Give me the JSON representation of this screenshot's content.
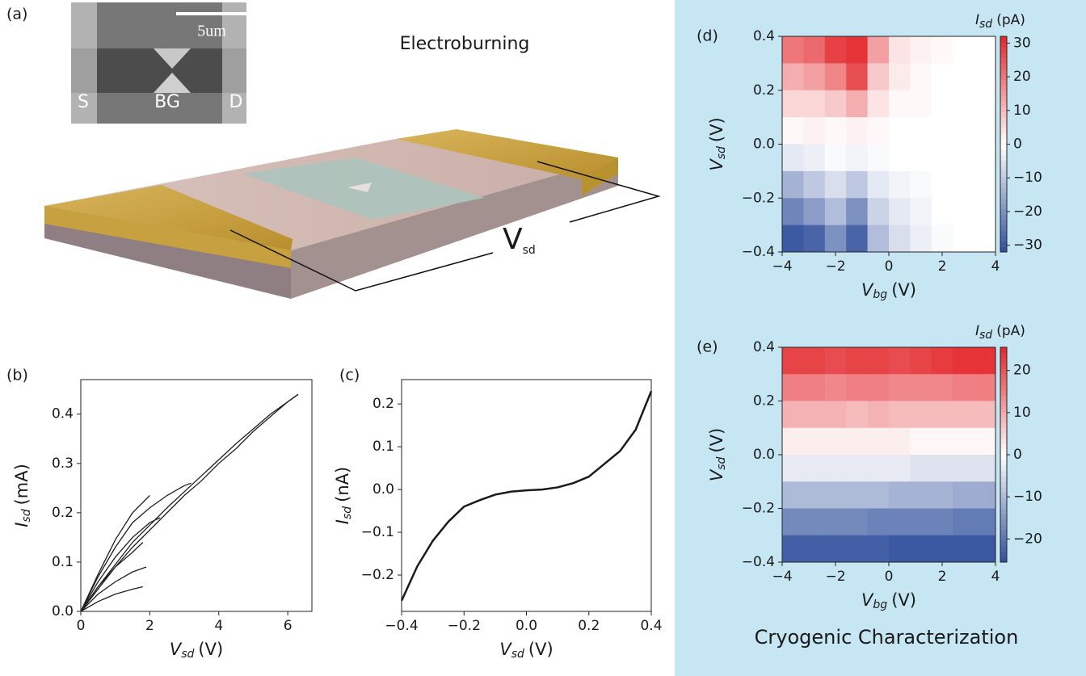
{
  "figure": {
    "panel_a": {
      "label": "(a)",
      "title": "Electroburning",
      "scale_bar": "5um",
      "electrodes": [
        "S",
        "BG",
        "D"
      ],
      "bias_symbol": "V",
      "bias_subscript": "sd"
    },
    "caption": "Cryogenic Characterization"
  },
  "chart_data": [
    {
      "type": "line",
      "label": "(b)",
      "xlabel": {
        "symbol": "V",
        "sub": "sd",
        "unit": "(V)"
      },
      "ylabel": {
        "symbol": "I",
        "sub": "sd",
        "unit": "(mA)"
      },
      "xlim": [
        0,
        6.7
      ],
      "ylim": [
        0,
        0.47
      ],
      "xticks": [
        0,
        2,
        4,
        6
      ],
      "yticks": [
        {
          "value": 0,
          "label": "0.0"
        },
        0.1,
        0.2,
        0.3,
        0.4
      ],
      "series": [
        {
          "color": "#231f20",
          "x": [
            0,
            0.5,
            1,
            1.5,
            2,
            2.5,
            3,
            3.5,
            4,
            4.5,
            5,
            5.5,
            6,
            6.3
          ],
          "values": [
            0,
            0.045,
            0.09,
            0.13,
            0.165,
            0.2,
            0.235,
            0.265,
            0.3,
            0.33,
            0.365,
            0.395,
            0.425,
            0.44
          ]
        },
        {
          "color": "#231f20",
          "x": [
            6.3,
            5.5,
            4.5,
            3.5,
            2.5,
            1.5,
            0.5,
            0
          ],
          "values": [
            0.44,
            0.4,
            0.34,
            0.275,
            0.21,
            0.14,
            0.05,
            0
          ]
        },
        {
          "color": "#231f20",
          "x": [
            0,
            0.5,
            1,
            1.5,
            2,
            2.5,
            3,
            3.2
          ],
          "values": [
            0,
            0.07,
            0.13,
            0.18,
            0.21,
            0.235,
            0.255,
            0.26
          ]
        },
        {
          "color": "#231f20",
          "x": [
            0,
            0.5,
            1,
            1.5,
            2,
            2.3
          ],
          "values": [
            0,
            0.06,
            0.11,
            0.15,
            0.18,
            0.19
          ]
        },
        {
          "color": "#231f20",
          "x": [
            0,
            0.5,
            1,
            1.5,
            2
          ],
          "values": [
            0,
            0.075,
            0.145,
            0.2,
            0.235
          ]
        },
        {
          "color": "#231f20",
          "x": [
            0,
            0.5,
            1,
            1.5,
            1.8
          ],
          "values": [
            0,
            0.05,
            0.09,
            0.12,
            0.14
          ]
        },
        {
          "color": "#231f20",
          "x": [
            0,
            0.5,
            1,
            1.5,
            1.9
          ],
          "values": [
            0,
            0.035,
            0.06,
            0.08,
            0.09
          ]
        },
        {
          "color": "#231f20",
          "x": [
            0,
            0.5,
            1,
            1.5,
            1.8
          ],
          "values": [
            0,
            0.02,
            0.035,
            0.045,
            0.05
          ]
        }
      ]
    },
    {
      "type": "line",
      "label": "(c)",
      "xlabel": {
        "symbol": "V",
        "sub": "sd",
        "unit": "(V)"
      },
      "ylabel": {
        "symbol": "I",
        "sub": "sd",
        "unit": "(nA)"
      },
      "xlim": [
        -0.4,
        0.4
      ],
      "ylim": [
        -0.285,
        0.257
      ],
      "xticks": [
        {
          "value": -0.4,
          "label": "−0.4"
        },
        {
          "value": -0.2,
          "label": "−0.2"
        },
        {
          "value": 0,
          "label": "0.0"
        },
        0.2,
        0.4
      ],
      "yticks": [
        {
          "value": -0.2,
          "label": "−0.2"
        },
        {
          "value": -0.1,
          "label": "−0.1"
        },
        {
          "value": 0,
          "label": "0.0"
        },
        0.1,
        0.2
      ],
      "series": [
        {
          "color": "#1a1a1a",
          "x": [
            -0.4,
            -0.35,
            -0.3,
            -0.25,
            -0.2,
            -0.15,
            -0.1,
            -0.05,
            0,
            0.05,
            0.1,
            0.15,
            0.2,
            0.25,
            0.3,
            0.35,
            0.4
          ],
          "values": [
            -0.26,
            -0.18,
            -0.12,
            -0.075,
            -0.04,
            -0.025,
            -0.012,
            -0.005,
            -0.002,
            0,
            0.005,
            0.015,
            0.03,
            0.06,
            0.09,
            0.14,
            0.23
          ]
        }
      ]
    },
    {
      "type": "heatmap",
      "label": "(d)",
      "xlabel": {
        "symbol": "V",
        "sub": "bg",
        "unit": "(V)"
      },
      "ylabel": {
        "symbol": "V",
        "sub": "sd",
        "unit": "(V)"
      },
      "zlabel": {
        "symbol": "I",
        "sub": "sd",
        "unit": "(pA)"
      },
      "xlim": [
        -4,
        4
      ],
      "ylim": [
        -0.4,
        0.4
      ],
      "zlim": [
        -32,
        32
      ],
      "xticks": [
        {
          "value": -4,
          "label": "−4"
        },
        {
          "value": -2,
          "label": "−2"
        },
        0,
        2,
        4
      ],
      "yticks": [
        {
          "value": -0.4,
          "label": "−0.4"
        },
        {
          "value": -0.2,
          "label": "−0.2"
        },
        {
          "value": 0,
          "label": "0.0"
        },
        0.2,
        0.4
      ],
      "zticks": [
        {
          "value": -30,
          "label": "−30"
        },
        {
          "value": -20,
          "label": "−20"
        },
        {
          "value": -10,
          "label": "−10"
        },
        0,
        10,
        20,
        30
      ],
      "cmap": [
        "#2f4f9c",
        "#ffffff",
        "#e3262a"
      ],
      "xbins": [
        -4,
        -3.2,
        -2.4,
        -1.6,
        -0.8,
        0,
        0.8,
        1.6,
        2.4,
        3.2,
        4
      ],
      "ybins": [
        0.4,
        0.3,
        0.2,
        0.1,
        0,
        -0.1,
        -0.2,
        -0.3,
        -0.4
      ],
      "z": [
        [
          20,
          22,
          28,
          30,
          14,
          4,
          2,
          1,
          0,
          0
        ],
        [
          12,
          14,
          18,
          26,
          8,
          3,
          1,
          0,
          0,
          0
        ],
        [
          6,
          6,
          8,
          12,
          4,
          1,
          1,
          0,
          0,
          0
        ],
        [
          1,
          2,
          1,
          2,
          1,
          0,
          0,
          0,
          0,
          0
        ],
        [
          -4,
          -3,
          -1,
          -2,
          -1,
          0,
          0,
          0,
          0,
          0
        ],
        [
          -14,
          -10,
          -6,
          -10,
          -4,
          -2,
          -1,
          0,
          0,
          0
        ],
        [
          -22,
          -18,
          -12,
          -20,
          -8,
          -4,
          -2,
          0,
          0,
          0
        ],
        [
          -30,
          -28,
          -20,
          -28,
          -12,
          -6,
          -3,
          -1,
          0,
          0
        ]
      ]
    },
    {
      "type": "heatmap",
      "label": "(e)",
      "xlabel": {
        "symbol": "V",
        "sub": "bg",
        "unit": "(V)"
      },
      "ylabel": {
        "symbol": "V",
        "sub": "sd",
        "unit": "(V)"
      },
      "zlabel": {
        "symbol": "I",
        "sub": "sd",
        "unit": "(pA)"
      },
      "xlim": [
        -4,
        4
      ],
      "ylim": [
        -0.4,
        0.4
      ],
      "zlim": [
        -25.5,
        25.5
      ],
      "xticks": [
        {
          "value": -4,
          "label": "−4"
        },
        {
          "value": -2,
          "label": "−2"
        },
        0,
        2,
        4
      ],
      "yticks": [
        {
          "value": -0.4,
          "label": "−0.4"
        },
        {
          "value": -0.2,
          "label": "−0.2"
        },
        {
          "value": 0,
          "label": "0.0"
        },
        0.2,
        0.4
      ],
      "zticks": [
        {
          "value": -20,
          "label": "−20"
        },
        {
          "value": -10,
          "label": "−10"
        },
        0,
        10,
        20
      ],
      "cmap": [
        "#2f4f9c",
        "#ffffff",
        "#e3262a"
      ],
      "xbins": [
        -4,
        -3.2,
        -2.4,
        -1.6,
        -0.8,
        0,
        0.8,
        1.6,
        2.4,
        3.2,
        4
      ],
      "ybins": [
        0.4,
        0.3,
        0.2,
        0.1,
        0,
        -0.1,
        -0.2,
        -0.3,
        -0.4
      ],
      "z": [
        [
          22,
          22,
          21,
          22,
          22,
          21,
          22,
          23,
          24,
          24
        ],
        [
          15,
          15,
          14,
          15,
          15,
          14,
          14,
          14,
          15,
          15
        ],
        [
          9,
          9,
          9,
          8,
          9,
          8,
          8,
          8,
          8,
          8
        ],
        [
          2,
          2,
          2,
          2,
          2,
          2,
          1,
          1,
          1,
          1
        ],
        [
          -3,
          -3,
          -3,
          -3,
          -3,
          -3,
          -4,
          -4,
          -4,
          -4
        ],
        [
          -10,
          -10,
          -10,
          -10,
          -10,
          -11,
          -11,
          -11,
          -12,
          -12
        ],
        [
          -17,
          -17,
          -17,
          -17,
          -18,
          -18,
          -18,
          -18,
          -19,
          -19
        ],
        [
          -23,
          -23,
          -23,
          -23,
          -23,
          -24,
          -24,
          -24,
          -24,
          -24
        ]
      ]
    }
  ]
}
